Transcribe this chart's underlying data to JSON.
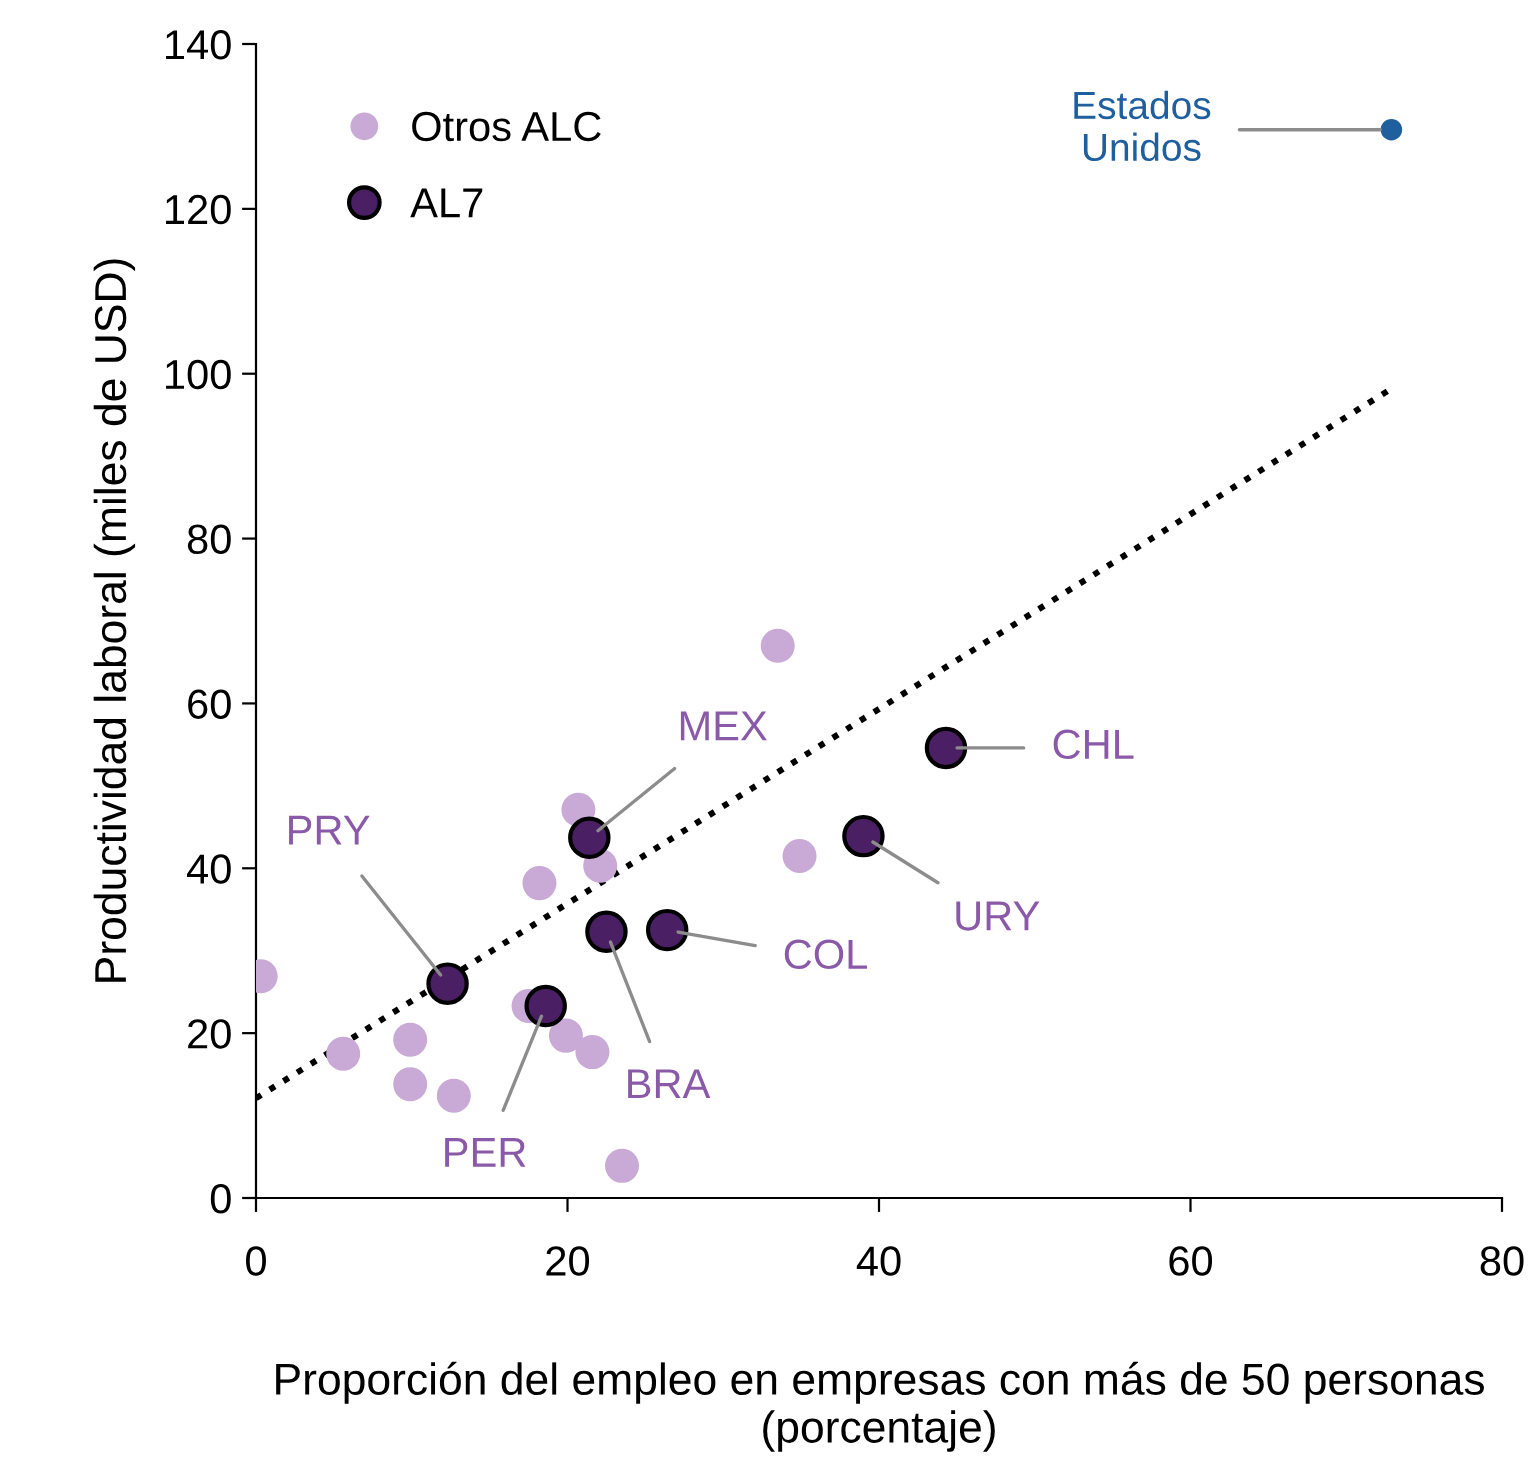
{
  "chart_data": {
    "type": "scatter",
    "xlabel": "Proporción del empleo en empresas con más de 50 personas (porcentaje)",
    "ylabel": "Productividad laboral (miles de USD)",
    "xlim": [
      0,
      80
    ],
    "xticks": [
      0,
      20,
      40,
      60,
      80
    ],
    "ylim": [
      0,
      140
    ],
    "yticks": [
      0,
      20,
      40,
      60,
      80,
      100,
      120,
      140
    ],
    "grid": false,
    "legend": "top left",
    "marker": "circle",
    "series": [
      {
        "name": "Otros ALC",
        "color": "#c9aad6",
        "x": [
          0.3,
          5.6,
          9.9,
          9.9,
          12.7,
          18.2,
          17.5,
          19.9,
          21.6,
          20.7,
          22.1,
          23.5,
          33.5,
          34.9
        ],
        "values": [
          26.9,
          17.5,
          19.2,
          13.8,
          12.4,
          38.2,
          23.3,
          19.7,
          17.7,
          47.1,
          40.3,
          3.9,
          67.0,
          41.5
        ]
      },
      {
        "name": "AL7",
        "color": "#4b1f63",
        "x": [
          12.3,
          18.6,
          21.4,
          22.5,
          26.4,
          39.0,
          44.3
        ],
        "values": [
          26.0,
          23.3,
          43.7,
          32.3,
          32.5,
          43.9,
          54.6
        ]
      },
      {
        "color": "#1f5f9e",
        "x": [
          72.9
        ],
        "values": [
          129.6
        ]
      },
      {
        "type": "line",
        "marker": "none",
        "line_style": "dotted",
        "color": "#000000",
        "x": [
          0,
          73
        ],
        "values": [
          12.1,
          98.3
        ]
      }
    ],
    "annotations": [
      {
        "text": "MEX",
        "x": 21.4,
        "y": 43.7
      },
      {
        "text": "PRY",
        "x": 12.3,
        "y": 26.0
      },
      {
        "text": "PER",
        "x": 18.6,
        "y": 23.3
      },
      {
        "text": "BRA",
        "x": 22.5,
        "y": 32.3
      },
      {
        "text": "COL",
        "x": 26.4,
        "y": 32.5
      },
      {
        "text": "URY",
        "x": 39.0,
        "y": 43.9
      },
      {
        "text": "CHL",
        "x": 44.3,
        "y": 54.6
      },
      {
        "text": "Estados\nUnidos",
        "x": 72.9,
        "y": 129.6
      }
    ]
  }
}
